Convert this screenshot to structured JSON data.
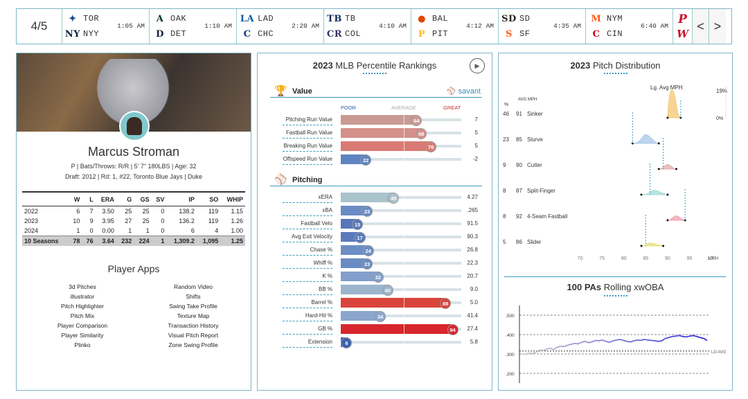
{
  "scoreboard": {
    "date": "4/5",
    "games": [
      {
        "away": "TOR",
        "home": "NYY",
        "time": "1:05 AM",
        "away_icon": "blue-jays-logo-icon",
        "home_icon": "yankees-logo-icon",
        "away_color": "#134a8e",
        "home_color": "#0c2340"
      },
      {
        "away": "OAK",
        "home": "DET",
        "time": "1:10 AM",
        "away_icon": "athletics-logo-icon",
        "home_icon": "tigers-logo-icon",
        "away_color": "#003831",
        "home_color": "#0c2340"
      },
      {
        "away": "LAD",
        "home": "CHC",
        "time": "2:20 AM",
        "away_icon": "dodgers-logo-icon",
        "home_icon": "cubs-logo-icon",
        "away_color": "#005a9c",
        "home_color": "#0e3386"
      },
      {
        "away": "TB",
        "home": "COL",
        "time": "4:10 AM",
        "away_icon": "rays-logo-icon",
        "home_icon": "rockies-logo-icon",
        "away_color": "#092c5c",
        "home_color": "#333366"
      },
      {
        "away": "BAL",
        "home": "PIT",
        "time": "4:12 AM",
        "away_icon": "orioles-logo-icon",
        "home_icon": "pirates-logo-icon",
        "away_color": "#df4601",
        "home_color": "#fdb827"
      },
      {
        "away": "SD",
        "home": "SF",
        "time": "4:35 AM",
        "away_icon": "padres-logo-icon",
        "home_icon": "giants-logo-icon",
        "away_color": "#2f241d",
        "home_color": "#fd5a1e"
      },
      {
        "away": "NYM",
        "home": "CIN",
        "time": "6:40 AM",
        "away_icon": "mets-logo-icon",
        "home_icon": "reds-logo-icon",
        "away_color": "#ff5910",
        "home_color": "#c6011f"
      }
    ],
    "extra_logos": [
      "phillies-logo-icon",
      "nationals-logo-icon"
    ],
    "prev_label": "<",
    "next_label": ">"
  },
  "player": {
    "name": "Marcus Stroman",
    "info1": "P | Bats/Throws: R/R | 5' 7\" 180LBS | Age: 32",
    "info2": "Draft: 2012 | Rd: 1, #22, Toronto Blue Jays | Duke",
    "stat_headers": [
      "",
      "W",
      "L",
      "ERA",
      "G",
      "GS",
      "SV",
      "IP",
      "SO",
      "WHIP"
    ],
    "stat_rows": [
      [
        "2022",
        "6",
        "7",
        "3.50",
        "25",
        "25",
        "0",
        "138.2",
        "119",
        "1.15"
      ],
      [
        "2023",
        "10",
        "9",
        "3.95",
        "27",
        "25",
        "0",
        "136.2",
        "119",
        "1.26"
      ],
      [
        "2024",
        "1",
        "0",
        "0.00",
        "1",
        "1",
        "0",
        "6",
        "4",
        "1.00"
      ],
      [
        "10 Seasons",
        "78",
        "76",
        "3.64",
        "232",
        "224",
        "1",
        "1,309.2",
        "1,095",
        "1.25"
      ]
    ],
    "apps_title": "Player Apps",
    "apps_left": [
      "3d Pitches",
      "illustrator",
      "Pitch Highlighter",
      "Pitch Mix",
      "Player Comparison",
      "Player Similarity",
      "Plinko"
    ],
    "apps_right": [
      "Random Video",
      "Shifts",
      "Swing Take Profile",
      "Texture Map",
      "Transaction History",
      "Visual Pitch Report",
      "Zone Swing Profile"
    ]
  },
  "percentile": {
    "title_bold": "2023",
    "title_rest": " MLB Percentile Rankings",
    "value_section": "Value",
    "pitching_section": "Pitching",
    "savant_label": "savant",
    "scale_poor": "POOR",
    "scale_average": "AVERAGE",
    "scale_great": "GREAT",
    "value_rows": [
      {
        "label": "Pitching Run Value",
        "pct": 64,
        "value": "7",
        "color": "#c99a94"
      },
      {
        "label": "Fastball Run Value",
        "pct": 68,
        "value": "5",
        "color": "#d4908a"
      },
      {
        "label": "Breaking Run Value",
        "pct": 76,
        "value": "5",
        "color": "#d97b74"
      },
      {
        "label": "Offspeed Run Value",
        "pct": 22,
        "value": "-2",
        "color": "#5f84c0"
      }
    ],
    "pitching_rows": [
      {
        "label": "xERA",
        "pct": 45,
        "value": "4.27",
        "color": "#a9c3cc"
      },
      {
        "label": "xBA",
        "pct": 23,
        "value": ".265",
        "color": "#6a8cc4"
      },
      {
        "label": "Fastball Velo",
        "pct": 15,
        "value": "91.5",
        "color": "#5877bb"
      },
      {
        "label": "Avg Exit Velocity",
        "pct": 17,
        "value": "90.3",
        "color": "#5a7abc"
      },
      {
        "label": "Chase %",
        "pct": 24,
        "value": "26.8",
        "color": "#6c8ec5"
      },
      {
        "label": "Whiff %",
        "pct": 23,
        "value": "22.3",
        "color": "#6a8cc4"
      },
      {
        "label": "K %",
        "pct": 32,
        "value": "20.7",
        "color": "#82a0cb"
      },
      {
        "label": "BB %",
        "pct": 40,
        "value": "9.0",
        "color": "#9bb5cd"
      },
      {
        "label": "Barrel %",
        "pct": 88,
        "value": "5.0",
        "color": "#d9443b"
      },
      {
        "label": "Hard-Hit %",
        "pct": 34,
        "value": "41.4",
        "color": "#8ba6cc"
      },
      {
        "label": "GB %",
        "pct": 94,
        "value": "27.4",
        "color": "#d7272d"
      },
      {
        "label": "Extension",
        "pct": 6,
        "value": "5.8",
        "color": "#3b63ad"
      }
    ]
  },
  "chart_data": [
    {
      "type": "area",
      "title": "2023 Pitch Distribution",
      "title_bold": "2023",
      "title_rest": " Pitch Distribution",
      "xlabel": "MPH",
      "xlim": [
        65,
        103
      ],
      "x_ticks": [
        "70",
        "75",
        "80",
        "85",
        "90",
        "95",
        "100"
      ],
      "col_headers": [
        "%",
        "AVG MPH"
      ],
      "lg_avg_label": "Lg. Avg MPH",
      "pct_scale": [
        "19%",
        "0%"
      ],
      "series": [
        {
          "name": "Sinker",
          "pct": 46,
          "mph": 91,
          "lg_avg": 93,
          "min": 90,
          "max": 93,
          "peak": 19,
          "color": "#f3c770"
        },
        {
          "name": "Slurve",
          "pct": 23,
          "mph": 85,
          "lg_avg": 82,
          "min": 82,
          "max": 88,
          "peak": 6,
          "color": "#a9c6e8"
        },
        {
          "name": "Cutter",
          "pct": 9,
          "mph": 90,
          "lg_avg": 89,
          "min": 88,
          "max": 92,
          "peak": 3,
          "color": "#e3a9a9"
        },
        {
          "name": "Split-Finger",
          "pct": 8,
          "mph": 87,
          "lg_avg": 86,
          "min": 84,
          "max": 90,
          "peak": 3,
          "color": "#9fdcd4"
        },
        {
          "name": "4-Seam Fastball",
          "pct": 8,
          "mph": 92,
          "lg_avg": 94,
          "min": 90,
          "max": 94,
          "peak": 3,
          "color": "#f0a0b0"
        },
        {
          "name": "Slider",
          "pct": 5,
          "mph": 86,
          "lg_avg": 85,
          "min": 84,
          "max": 89,
          "peak": 2,
          "color": "#e6e07a"
        }
      ]
    },
    {
      "type": "line",
      "title": "100 PAs Rolling xwOBA",
      "title_bold": "100 PAs",
      "title_rest": " Rolling xwOBA",
      "y_ticks": [
        ".500",
        ".400",
        ".300",
        ".200"
      ],
      "ylim": [
        0.15,
        0.55
      ],
      "lg_avg": 0.315,
      "lg_avg_label": "LG AVG",
      "values": [
        0.3,
        0.298,
        0.305,
        0.302,
        0.31,
        0.32,
        0.318,
        0.325,
        0.33,
        0.322,
        0.335,
        0.34,
        0.338,
        0.345,
        0.35,
        0.355,
        0.352,
        0.36,
        0.365,
        0.358,
        0.362,
        0.37,
        0.368,
        0.372,
        0.365,
        0.36,
        0.368,
        0.372,
        0.375,
        0.37,
        0.365,
        0.362,
        0.368,
        0.372,
        0.37,
        0.375,
        0.372,
        0.37,
        0.368,
        0.365,
        0.368,
        0.38,
        0.385,
        0.39,
        0.392,
        0.395,
        0.39,
        0.388,
        0.392,
        0.395,
        0.39,
        0.385,
        0.38,
        0.37
      ]
    }
  ]
}
